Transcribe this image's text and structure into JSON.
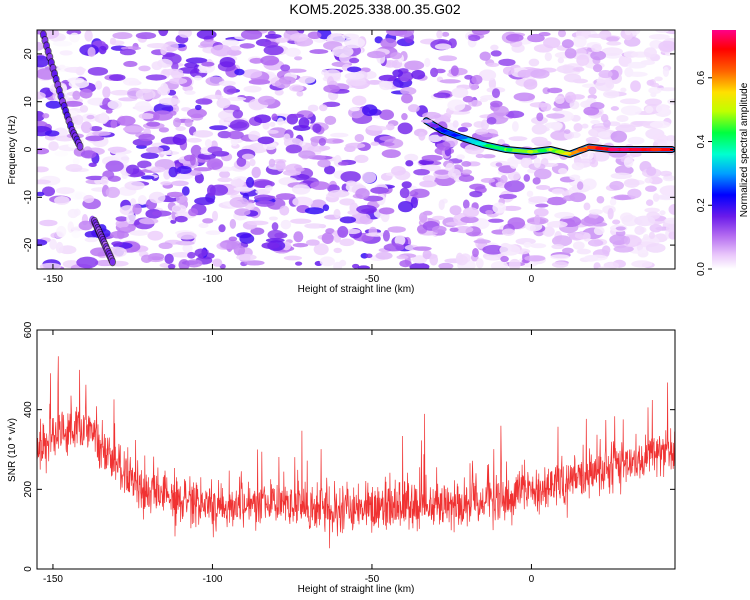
{
  "title": "KOM5.2025.338.00.35.G02",
  "chart_data": [
    {
      "type": "heatmap",
      "name": "spectrogram",
      "xlabel": "Height of straight line (km)",
      "ylabel": "Frequency (Hz)",
      "xlim": [
        -155,
        45
      ],
      "ylim": [
        -25,
        25
      ],
      "xticks": [
        -150,
        -100,
        -50,
        0
      ],
      "yticks": [
        -20,
        -10,
        0,
        10,
        20
      ],
      "colorbar": {
        "label": "Normalized spectral amplitude",
        "range": [
          0.0,
          0.75
        ],
        "ticks": [
          0.0,
          0.2,
          0.4,
          0.6
        ],
        "colormap": [
          "#ffffff",
          "#e9c6fb",
          "#b36af0",
          "#6a1bea",
          "#0000ff",
          "#00a0ff",
          "#00ffd0",
          "#00ff40",
          "#c0ff00",
          "#ffe000",
          "#ff6000",
          "#ff0000",
          "#ff0088"
        ]
      },
      "features": [
        {
          "name": "descending-streak",
          "x": [
            -153,
            -150,
            -147,
            -144,
            -141
          ],
          "y": [
            24,
            17,
            10,
            4,
            0
          ],
          "value": 0.18
        },
        {
          "name": "lower-left-streak",
          "x": [
            -137,
            -135,
            -133,
            -131
          ],
          "y": [
            -15,
            -18,
            -21,
            -24
          ],
          "value": 0.15
        },
        {
          "name": "tone-line",
          "x": [
            -33,
            -28,
            -22,
            -15,
            -8,
            0,
            6,
            12,
            18,
            25,
            35,
            44
          ],
          "y": [
            6,
            4,
            2.5,
            1,
            0,
            -0.5,
            0,
            -1,
            0.5,
            0,
            0,
            0
          ],
          "value": [
            0.12,
            0.2,
            0.3,
            0.4,
            0.45,
            0.5,
            0.45,
            0.55,
            0.65,
            0.7,
            0.7,
            0.68
          ]
        }
      ]
    },
    {
      "type": "line",
      "name": "snr",
      "xlabel": "Height of straight line (km)",
      "ylabel": "SNR (10 * v/v)",
      "xlim": [
        -155,
        45
      ],
      "ylim": [
        0,
        600
      ],
      "xticks": [
        -150,
        -100,
        -50,
        0
      ],
      "yticks": [
        0,
        200,
        400,
        600
      ],
      "color": "#f03232",
      "trend": {
        "x": [
          -155,
          -150,
          -145,
          -140,
          -135,
          -130,
          -125,
          -120,
          -110,
          -100,
          -90,
          -80,
          -70,
          -60,
          -50,
          -40,
          -30,
          -20,
          -10,
          0,
          10,
          20,
          30,
          40,
          45
        ],
        "y": [
          280,
          340,
          360,
          350,
          320,
          270,
          220,
          190,
          170,
          160,
          155,
          160,
          150,
          150,
          155,
          160,
          165,
          170,
          180,
          195,
          215,
          240,
          270,
          290,
          295
        ]
      },
      "spread": 110
    }
  ]
}
